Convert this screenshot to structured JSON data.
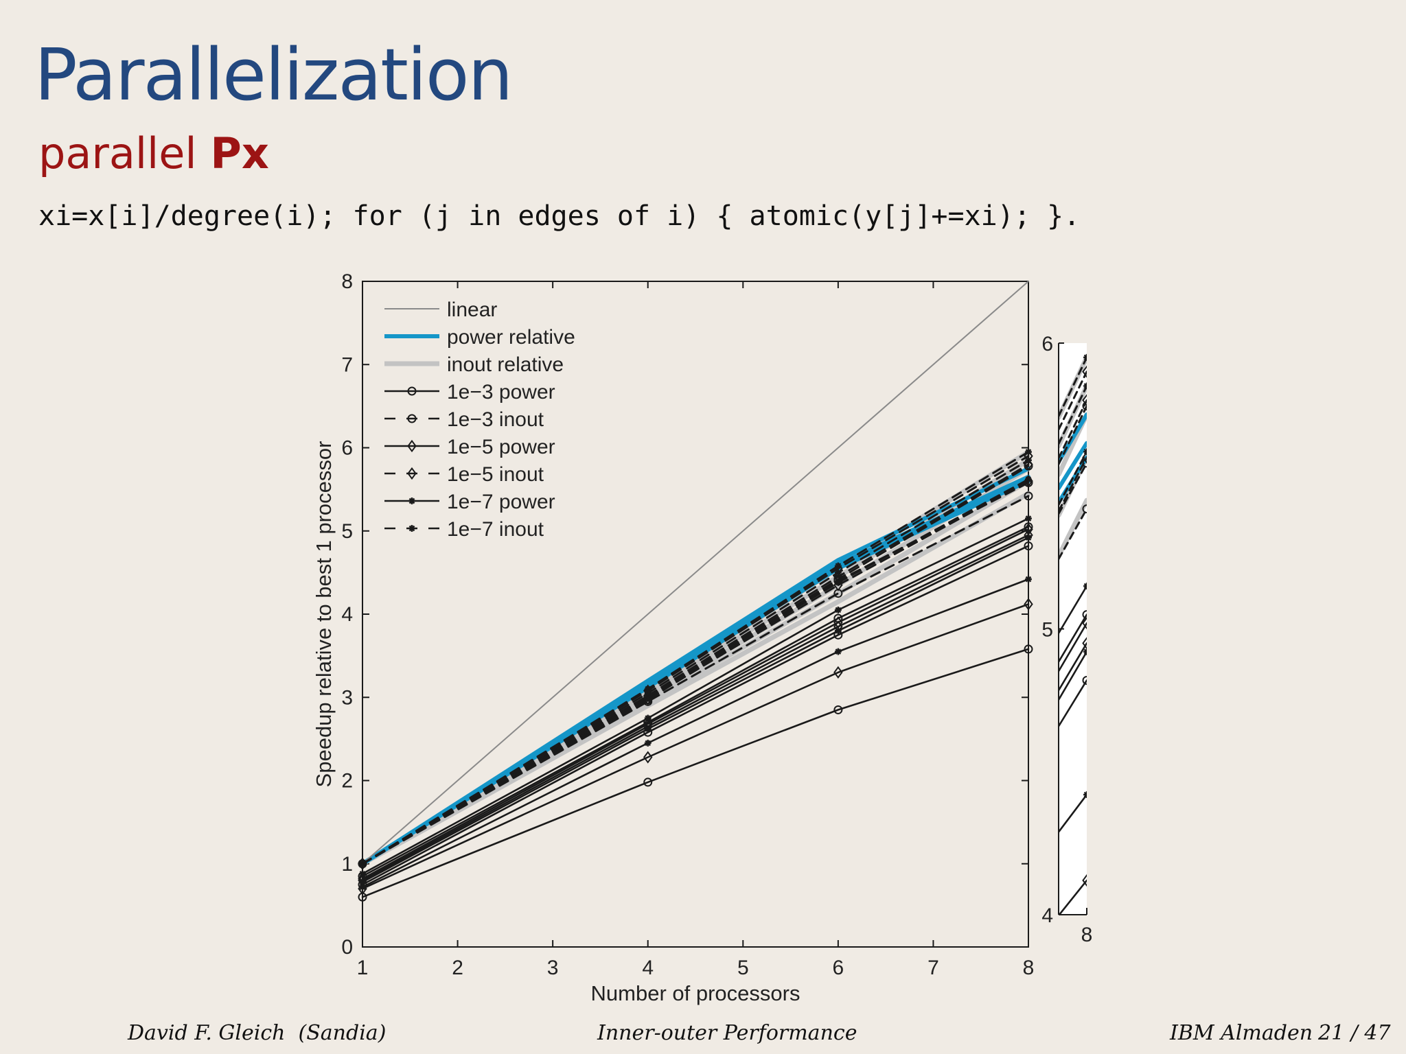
{
  "slide": {
    "title": "Parallelization",
    "subtitle_prefix": "parallel ",
    "subtitle_bold": "Px",
    "code": "xi=x[i]/degree(i); for (j in edges of i) { atomic(y[j]+=xi); }.",
    "colors": {
      "title": "#23487f",
      "subtitle": "#9c1414",
      "background": "#f0ebe4"
    }
  },
  "footer": {
    "author": "David F. Gleich  (Sandia)",
    "talk": "Inner-outer Performance",
    "venue": "IBM Almaden",
    "page": "21 / 47"
  },
  "chart_data": [
    {
      "type": "line",
      "xlabel": "Number of processors",
      "ylabel": "Speedup relative to best 1 processor",
      "xlim": [
        1,
        8
      ],
      "ylim": [
        0,
        8
      ],
      "xticks": [
        1,
        2,
        3,
        4,
        5,
        6,
        7,
        8
      ],
      "yticks": [
        0,
        1,
        2,
        3,
        4,
        5,
        6,
        7,
        8
      ],
      "legend_position": "top-left",
      "x": [
        1,
        4,
        6,
        8
      ],
      "legend": [
        {
          "label": "linear",
          "style": "linear"
        },
        {
          "label": "power relative",
          "style": "power_rel"
        },
        {
          "label": "inout relative",
          "style": "inout_rel"
        },
        {
          "label": "1e−3 power",
          "style": "solid",
          "marker": "circle"
        },
        {
          "label": "1e−3 inout",
          "style": "dashed",
          "marker": "circle"
        },
        {
          "label": "1e−5 power",
          "style": "solid",
          "marker": "diamond"
        },
        {
          "label": "1e−5 inout",
          "style": "dashed",
          "marker": "diamond"
        },
        {
          "label": "1e−7 power",
          "style": "solid",
          "marker": "star"
        },
        {
          "label": "1e−7 inout",
          "style": "dashed",
          "marker": "star"
        }
      ],
      "series": [
        {
          "style": "linear",
          "x": [
            1,
            8
          ],
          "values": [
            1,
            8
          ]
        },
        {
          "style": "power_rel",
          "values": [
            1.0,
            3.2,
            4.65,
            5.75
          ]
        },
        {
          "style": "power_rel",
          "values": [
            1.0,
            3.15,
            4.6,
            5.65
          ]
        },
        {
          "style": "power_rel",
          "values": [
            1.0,
            3.12,
            4.55,
            5.6
          ]
        },
        {
          "style": "inout_rel",
          "values": [
            1.0,
            3.1,
            4.55,
            5.95
          ]
        },
        {
          "style": "inout_rel",
          "values": [
            1.0,
            3.05,
            4.45,
            5.85
          ]
        },
        {
          "style": "inout_rel",
          "values": [
            1.0,
            3.0,
            4.35,
            5.75
          ]
        },
        {
          "style": "inout_rel",
          "values": [
            1.0,
            2.95,
            4.25,
            5.6
          ]
        },
        {
          "style": "inout_rel",
          "values": [
            1.0,
            2.9,
            4.15,
            5.45
          ]
        },
        {
          "style": "dashed",
          "marker": "star",
          "values": [
            1.0,
            3.1,
            4.58,
            5.95
          ]
        },
        {
          "style": "dashed",
          "marker": "diamond",
          "values": [
            1.0,
            3.08,
            4.55,
            5.9
          ]
        },
        {
          "style": "dashed",
          "marker": "star",
          "values": [
            1.0,
            3.05,
            4.5,
            5.85
          ]
        },
        {
          "style": "dashed",
          "marker": "diamond",
          "values": [
            1.0,
            3.02,
            4.45,
            5.8
          ]
        },
        {
          "style": "dashed",
          "marker": "circle",
          "values": [
            1.0,
            3.0,
            4.42,
            5.78
          ]
        },
        {
          "style": "dashed",
          "marker": "star",
          "values": [
            1.0,
            3.0,
            4.38,
            5.62
          ]
        },
        {
          "style": "dashed",
          "marker": "diamond",
          "values": [
            1.0,
            2.98,
            4.35,
            5.6
          ]
        },
        {
          "style": "dashed",
          "marker": "circle",
          "values": [
            1.0,
            2.97,
            4.4,
            5.58
          ]
        },
        {
          "style": "dashed",
          "marker": "circle",
          "values": [
            1.0,
            2.95,
            4.25,
            5.42
          ]
        },
        {
          "style": "solid",
          "marker": "star",
          "values": [
            0.88,
            2.75,
            4.05,
            5.15
          ]
        },
        {
          "style": "solid",
          "marker": "circle",
          "values": [
            0.85,
            2.7,
            3.95,
            5.05
          ]
        },
        {
          "style": "solid",
          "marker": "diamond",
          "values": [
            0.82,
            2.68,
            3.9,
            5.02
          ]
        },
        {
          "style": "solid",
          "marker": "diamond",
          "values": [
            0.8,
            2.65,
            3.85,
            4.95
          ]
        },
        {
          "style": "solid",
          "marker": "star",
          "values": [
            0.78,
            2.62,
            3.8,
            4.92
          ]
        },
        {
          "style": "solid",
          "marker": "circle",
          "values": [
            0.75,
            2.58,
            3.75,
            4.82
          ]
        },
        {
          "style": "solid",
          "marker": "star",
          "values": [
            0.72,
            2.45,
            3.55,
            4.42
          ]
        },
        {
          "style": "solid",
          "marker": "diamond",
          "values": [
            0.7,
            2.28,
            3.3,
            4.12
          ]
        },
        {
          "style": "solid",
          "marker": "circle",
          "values": [
            0.6,
            1.98,
            2.85,
            3.58
          ]
        }
      ]
    },
    {
      "type": "line",
      "subtype": "zoom-inset",
      "xlim": [
        7.7,
        8
      ],
      "ylim": [
        4,
        6
      ],
      "xticks": [
        8
      ],
      "yticks": [
        4,
        5,
        6
      ],
      "x_label_shown": "8"
    }
  ]
}
